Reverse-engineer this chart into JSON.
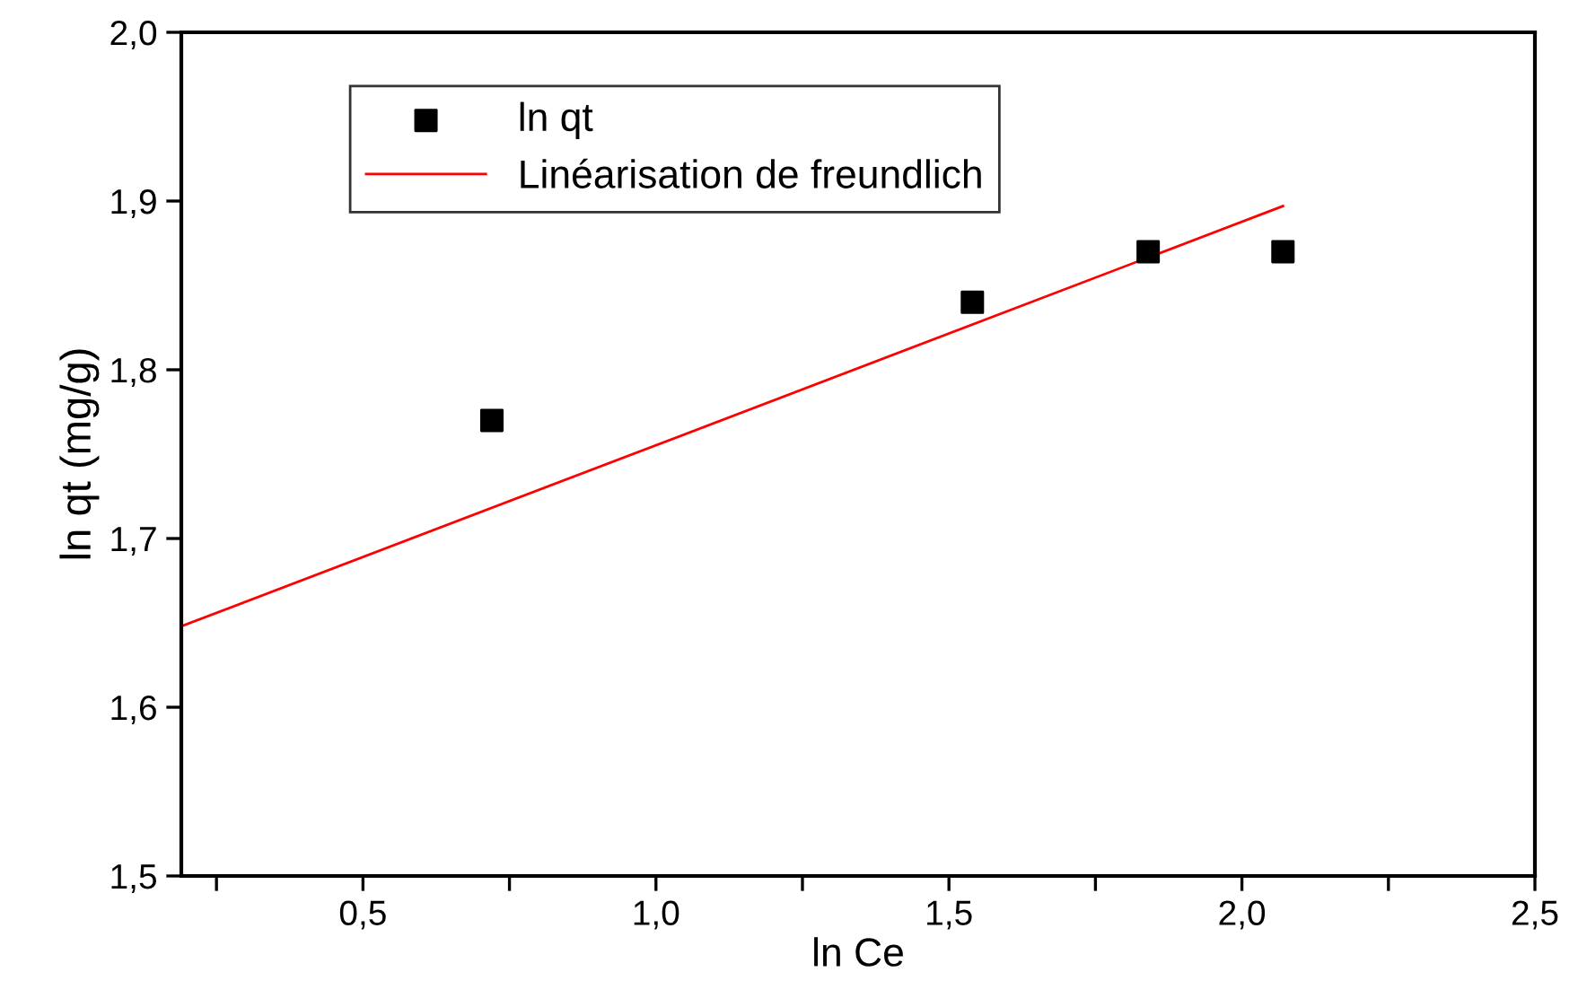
{
  "chart_data": {
    "type": "scatter",
    "xlabel": "ln Ce",
    "ylabel": "ln qt (mg/g)",
    "series": [
      {
        "name": "ln qt",
        "color": "#000000",
        "marker": "square",
        "x": [
          0.72,
          1.54,
          1.84,
          2.07
        ],
        "values": [
          1.77,
          1.84,
          1.87,
          1.87
        ]
      },
      {
        "name": "Linéarisation de freundlich",
        "type": "line",
        "color": "#ff0000",
        "marker": "none",
        "line_style": "solid",
        "x": [
          0.19,
          2.07
        ],
        "values": [
          1.648,
          1.897
        ]
      }
    ],
    "xlim": [
      0.19,
      2.5
    ],
    "ylim": [
      1.5,
      2.0
    ],
    "xticks": [
      {
        "value": 0.25,
        "label": null
      },
      {
        "value": 0.5,
        "label": "0,5"
      },
      {
        "value": 0.75,
        "label": null
      },
      {
        "value": 1.0,
        "label": "1,0"
      },
      {
        "value": 1.25,
        "label": null
      },
      {
        "value": 1.5,
        "label": "1,5"
      },
      {
        "value": 1.75,
        "label": null
      },
      {
        "value": 2.0,
        "label": "2,0"
      },
      {
        "value": 2.25,
        "label": null
      },
      {
        "value": 2.5,
        "label": "2,5"
      }
    ],
    "yticks": [
      {
        "value": 1.5,
        "label": "1,5"
      },
      {
        "value": 1.6,
        "label": "1,6"
      },
      {
        "value": 1.7,
        "label": "1,7"
      },
      {
        "value": 1.8,
        "label": "1,8"
      },
      {
        "value": 1.9,
        "label": "1,9"
      },
      {
        "value": 2.0,
        "label": "2,0"
      }
    ],
    "grid": false,
    "legend": "top left"
  }
}
